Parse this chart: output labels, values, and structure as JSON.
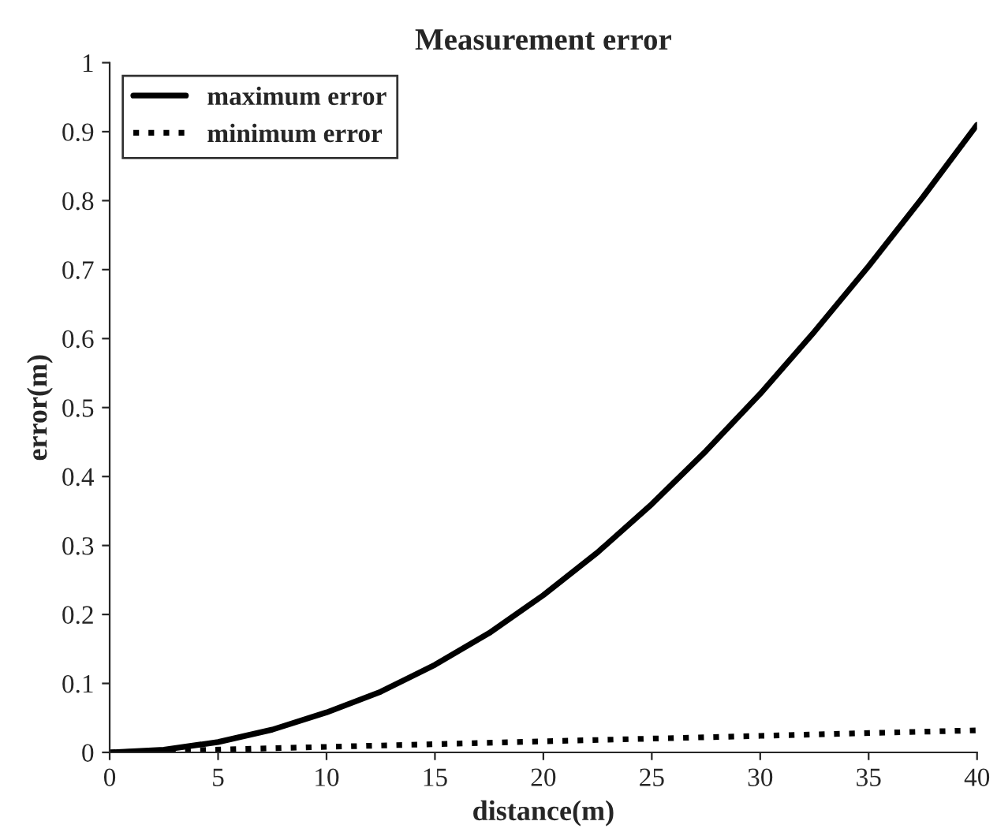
{
  "chart_data": {
    "type": "line",
    "title": "Measurement error",
    "xlabel": "distance(m)",
    "ylabel": "error(m)",
    "series": [
      {
        "name": "maximum error",
        "color": "#000000",
        "line_style": "solid",
        "x": [
          0,
          2.5,
          5,
          7.5,
          10,
          12.5,
          15,
          17.5,
          20,
          22.5,
          25,
          27.5,
          30,
          32.5,
          35,
          37.5,
          40
        ],
        "values": [
          0,
          0.004,
          0.015,
          0.033,
          0.058,
          0.088,
          0.127,
          0.173,
          0.228,
          0.29,
          0.36,
          0.437,
          0.52,
          0.61,
          0.705,
          0.805,
          0.91
        ]
      },
      {
        "name": "minimum error",
        "color": "#000000",
        "line_style": "dotted",
        "x": [
          0,
          10,
          20,
          30,
          40
        ],
        "values": [
          0,
          0.008,
          0.016,
          0.024,
          0.032
        ]
      }
    ],
    "xlim": [
      0,
      40
    ],
    "xticks": [
      0,
      5,
      10,
      15,
      20,
      25,
      30,
      35,
      40
    ],
    "ylim": [
      0,
      1
    ],
    "yticks": [
      0,
      0.1,
      0.2,
      0.3,
      0.4,
      0.5,
      0.6,
      0.7,
      0.8,
      0.9,
      1
    ],
    "grid": false,
    "legend": "top left",
    "marker": "none"
  }
}
